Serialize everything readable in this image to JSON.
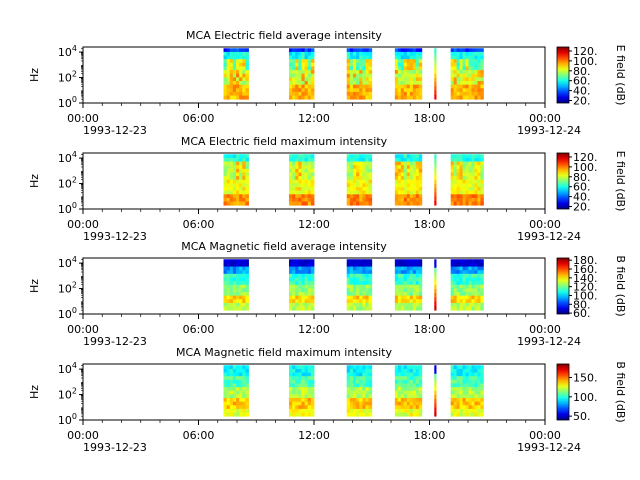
{
  "chart_data": [
    {
      "type": "heatmap",
      "title": "MCA  Electric field average intensity",
      "ylabel": "Hz",
      "y_ticks": [
        {
          "base": "10",
          "exp": "0"
        },
        {
          "base": "10",
          "exp": "2"
        },
        {
          "base": "10",
          "exp": "4"
        }
      ],
      "x_ticks": [
        "00:00",
        "06:00",
        "12:00",
        "18:00",
        "00:00"
      ],
      "x_date_start": "1993-12-23",
      "x_date_end": "1993-12-24",
      "x_range_hours": [
        0,
        24
      ],
      "y_range_log10": [
        0,
        4.4
      ],
      "colorbar": {
        "label": "E field (dB)",
        "ticks": [
          "20.",
          "40.",
          "60.",
          "80.",
          "100.",
          "120."
        ],
        "range": [
          15,
          128
        ]
      },
      "segments_hours": [
        [
          7.3,
          8.6
        ],
        [
          10.7,
          12.0
        ],
        [
          13.7,
          15.0
        ],
        [
          16.2,
          17.6
        ],
        [
          19.1,
          20.8
        ]
      ],
      "spike_hours": [
        18.3
      ],
      "profile": "electric_avg"
    },
    {
      "type": "heatmap",
      "title": "MCA  Electric field maximum intensity",
      "ylabel": "Hz",
      "y_ticks": [
        {
          "base": "10",
          "exp": "0"
        },
        {
          "base": "10",
          "exp": "2"
        },
        {
          "base": "10",
          "exp": "4"
        }
      ],
      "x_ticks": [
        "00:00",
        "06:00",
        "12:00",
        "18:00",
        "00:00"
      ],
      "x_date_start": "1993-12-23",
      "x_date_end": "1993-12-24",
      "x_range_hours": [
        0,
        24
      ],
      "y_range_log10": [
        0,
        4.4
      ],
      "colorbar": {
        "label": "E field (dB)",
        "ticks": [
          "20.",
          "40.",
          "60.",
          "80.",
          "100.",
          "120."
        ],
        "range": [
          15,
          128
        ]
      },
      "segments_hours": [
        [
          7.3,
          8.6
        ],
        [
          10.7,
          12.0
        ],
        [
          13.7,
          15.0
        ],
        [
          16.2,
          17.6
        ],
        [
          19.1,
          20.8
        ]
      ],
      "spike_hours": [
        18.3
      ],
      "profile": "electric_max"
    },
    {
      "type": "heatmap",
      "title": "MCA  Magnetic field average intensity",
      "ylabel": "Hz",
      "y_ticks": [
        {
          "base": "10",
          "exp": "0"
        },
        {
          "base": "10",
          "exp": "2"
        },
        {
          "base": "10",
          "exp": "4"
        }
      ],
      "x_ticks": [
        "00:00",
        "06:00",
        "12:00",
        "18:00",
        "00:00"
      ],
      "x_date_start": "1993-12-23",
      "x_date_end": "1993-12-24",
      "x_range_hours": [
        0,
        24
      ],
      "y_range_log10": [
        0,
        4.4
      ],
      "colorbar": {
        "label": "B field (dB)",
        "ticks": [
          "60.",
          "80.",
          "100.",
          "120.",
          "140.",
          "160.",
          "180."
        ],
        "range": [
          58,
          185
        ]
      },
      "segments_hours": [
        [
          7.3,
          8.6
        ],
        [
          10.7,
          12.0
        ],
        [
          13.7,
          15.0
        ],
        [
          16.2,
          17.6
        ],
        [
          19.1,
          20.8
        ]
      ],
      "spike_hours": [
        18.3
      ],
      "profile": "magnetic_avg"
    },
    {
      "type": "heatmap",
      "title": "MCA  Magnetic field maximum intensity",
      "ylabel": "Hz",
      "y_ticks": [
        {
          "base": "10",
          "exp": "0"
        },
        {
          "base": "10",
          "exp": "2"
        },
        {
          "base": "10",
          "exp": "4"
        }
      ],
      "x_ticks": [
        "00:00",
        "06:00",
        "12:00",
        "18:00",
        "00:00"
      ],
      "x_date_start": "1993-12-23",
      "x_date_end": "1993-12-24",
      "x_range_hours": [
        0,
        24
      ],
      "y_range_log10": [
        0,
        4.4
      ],
      "colorbar": {
        "label": "B field (dB)",
        "ticks": [
          "50.",
          "100.",
          "150."
        ],
        "range": [
          40,
          185
        ]
      },
      "segments_hours": [
        [
          7.3,
          8.6
        ],
        [
          10.7,
          12.0
        ],
        [
          13.7,
          15.0
        ],
        [
          16.2,
          17.6
        ],
        [
          19.1,
          20.8
        ]
      ],
      "spike_hours": [
        18.3
      ],
      "profile": "magnetic_max"
    }
  ]
}
